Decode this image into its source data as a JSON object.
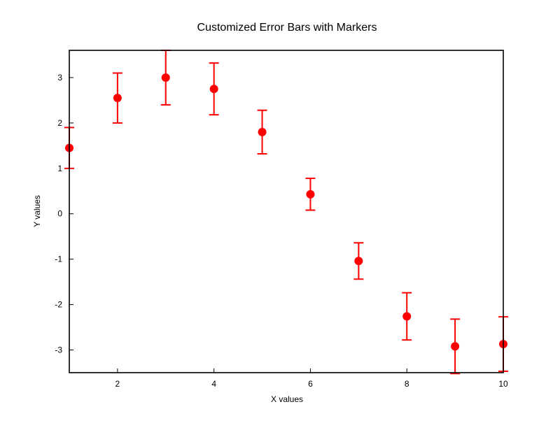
{
  "chart_data": {
    "type": "scatter",
    "title": "Customized Error Bars with Markers",
    "xlabel": "X values",
    "ylabel": "Y values",
    "xlim": [
      1,
      10
    ],
    "ylim": [
      -3.5,
      3.6
    ],
    "xticks": [
      2,
      4,
      6,
      8,
      10
    ],
    "yticks": [
      -3,
      -2,
      -1,
      0,
      1,
      2,
      3
    ],
    "grid": false,
    "legend": null,
    "series": [
      {
        "color": "#ff0000",
        "marker": "circle",
        "points": [
          {
            "x": 1,
            "y": 1.45,
            "err": 0.45
          },
          {
            "x": 2,
            "y": 2.55,
            "err": 0.55
          },
          {
            "x": 3,
            "y": 3.0,
            "err": 0.6
          },
          {
            "x": 4,
            "y": 2.75,
            "err": 0.57
          },
          {
            "x": 5,
            "y": 1.8,
            "err": 0.48
          },
          {
            "x": 6,
            "y": 0.43,
            "err": 0.35
          },
          {
            "x": 7,
            "y": -1.04,
            "err": 0.4
          },
          {
            "x": 8,
            "y": -2.26,
            "err": 0.52
          },
          {
            "x": 9,
            "y": -2.92,
            "err": 0.6
          },
          {
            "x": 10,
            "y": -2.87,
            "err": 0.6
          }
        ]
      }
    ]
  }
}
